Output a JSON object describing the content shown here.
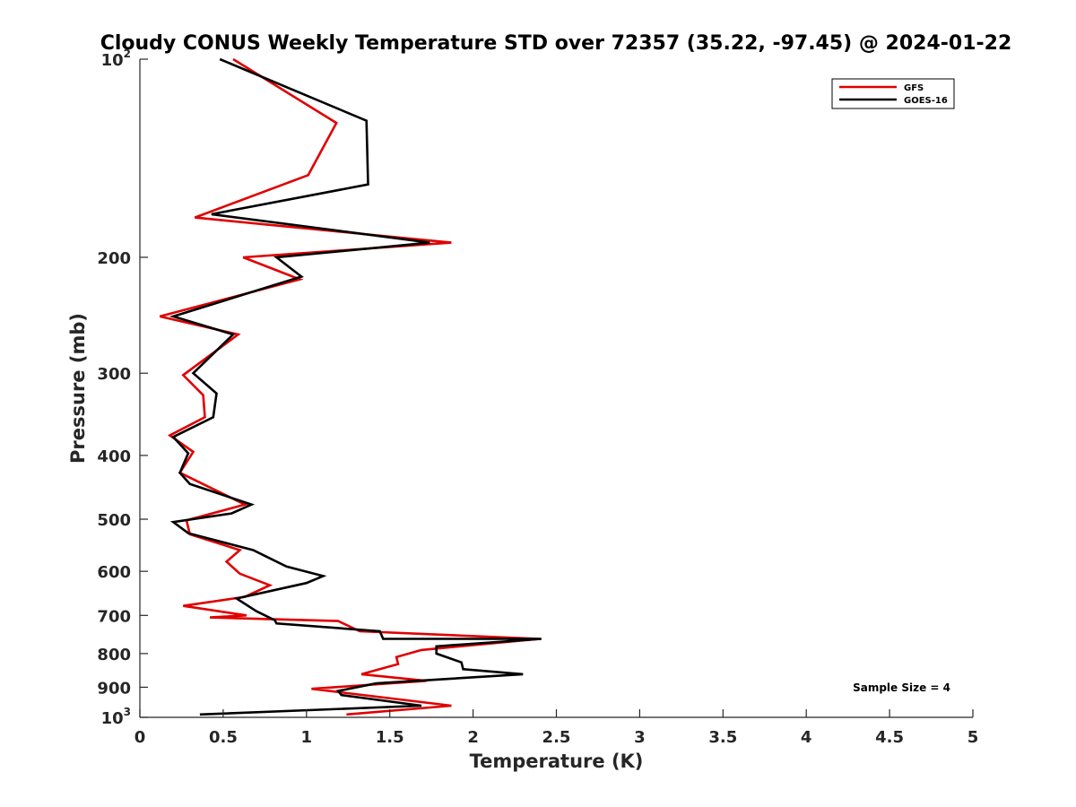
{
  "chart_data": {
    "type": "line",
    "title": "Cloudy CONUS Weekly Temperature STD over 72357 (35.22, -97.45) @ 2024-01-22",
    "xlabel": "Temperature (K)",
    "ylabel": "Pressure (mb)",
    "xlim": [
      0,
      5
    ],
    "ylim": [
      100,
      1000
    ],
    "y_scale": "log",
    "y_reversed": true,
    "grid": false,
    "legend_position": "top-right",
    "x_ticks": [
      "0",
      "0.5",
      "1",
      "1.5",
      "2",
      "2.5",
      "3",
      "3.5",
      "4",
      "4.5",
      "5"
    ],
    "y_ticks": [
      {
        "value": 100,
        "base": "10",
        "exp": "2"
      },
      {
        "value": 200,
        "label": "200"
      },
      {
        "value": 300,
        "label": "300"
      },
      {
        "value": 400,
        "label": "400"
      },
      {
        "value": 500,
        "label": "500"
      },
      {
        "value": 600,
        "label": "600"
      },
      {
        "value": 700,
        "label": "700"
      },
      {
        "value": 800,
        "label": "800"
      },
      {
        "value": 900,
        "label": "900"
      },
      {
        "value": 1000,
        "base": "10",
        "exp": "3"
      }
    ],
    "annotation": "Sample Size = 4",
    "series": [
      {
        "name": "GFS",
        "color": "#e00000",
        "points": [
          [
            0.56,
            100
          ],
          [
            1.18,
            125
          ],
          [
            1.01,
            150
          ],
          [
            0.33,
            174
          ],
          [
            1.87,
            190
          ],
          [
            0.62,
            200
          ],
          [
            0.96,
            216
          ],
          [
            0.12,
            246
          ],
          [
            0.59,
            262
          ],
          [
            0.26,
            302
          ],
          [
            0.38,
            324
          ],
          [
            0.39,
            350
          ],
          [
            0.18,
            373
          ],
          [
            0.32,
            395
          ],
          [
            0.24,
            425
          ],
          [
            0.63,
            475
          ],
          [
            0.28,
            502
          ],
          [
            0.3,
            527
          ],
          [
            0.6,
            557
          ],
          [
            0.52,
            580
          ],
          [
            0.6,
            605
          ],
          [
            0.78,
            630
          ],
          [
            0.63,
            656
          ],
          [
            0.26,
            677
          ],
          [
            0.64,
            700
          ],
          [
            0.42,
            705
          ],
          [
            1.19,
            714
          ],
          [
            1.32,
            740
          ],
          [
            2.4,
            760
          ],
          [
            1.69,
            790
          ],
          [
            1.54,
            810
          ],
          [
            1.55,
            830
          ],
          [
            1.33,
            860
          ],
          [
            1.72,
            880
          ],
          [
            1.03,
            905
          ],
          [
            1.87,
            960
          ],
          [
            1.24,
            990
          ]
        ]
      },
      {
        "name": "GOES-16",
        "color": "#000000",
        "points": [
          [
            0.48,
            100
          ],
          [
            1.36,
            124
          ],
          [
            1.37,
            155
          ],
          [
            0.43,
            172
          ],
          [
            1.74,
            190
          ],
          [
            0.82,
            200
          ],
          [
            0.97,
            214
          ],
          [
            0.2,
            246
          ],
          [
            0.56,
            262
          ],
          [
            0.32,
            300
          ],
          [
            0.46,
            322
          ],
          [
            0.44,
            350
          ],
          [
            0.2,
            375
          ],
          [
            0.29,
            397
          ],
          [
            0.24,
            425
          ],
          [
            0.3,
            442
          ],
          [
            0.67,
            475
          ],
          [
            0.55,
            490
          ],
          [
            0.2,
            505
          ],
          [
            0.29,
            525
          ],
          [
            0.68,
            557
          ],
          [
            0.76,
            570
          ],
          [
            0.88,
            590
          ],
          [
            1.1,
            610
          ],
          [
            1.0,
            625
          ],
          [
            0.58,
            660
          ],
          [
            0.7,
            690
          ],
          [
            0.81,
            712
          ],
          [
            0.82,
            720
          ],
          [
            1.44,
            740
          ],
          [
            1.46,
            760
          ],
          [
            2.41,
            760
          ],
          [
            1.78,
            780
          ],
          [
            1.78,
            800
          ],
          [
            1.93,
            825
          ],
          [
            1.94,
            845
          ],
          [
            2.3,
            860
          ],
          [
            1.42,
            888
          ],
          [
            1.19,
            912
          ],
          [
            1.21,
            925
          ],
          [
            1.69,
            960
          ],
          [
            0.36,
            990
          ]
        ]
      }
    ]
  }
}
